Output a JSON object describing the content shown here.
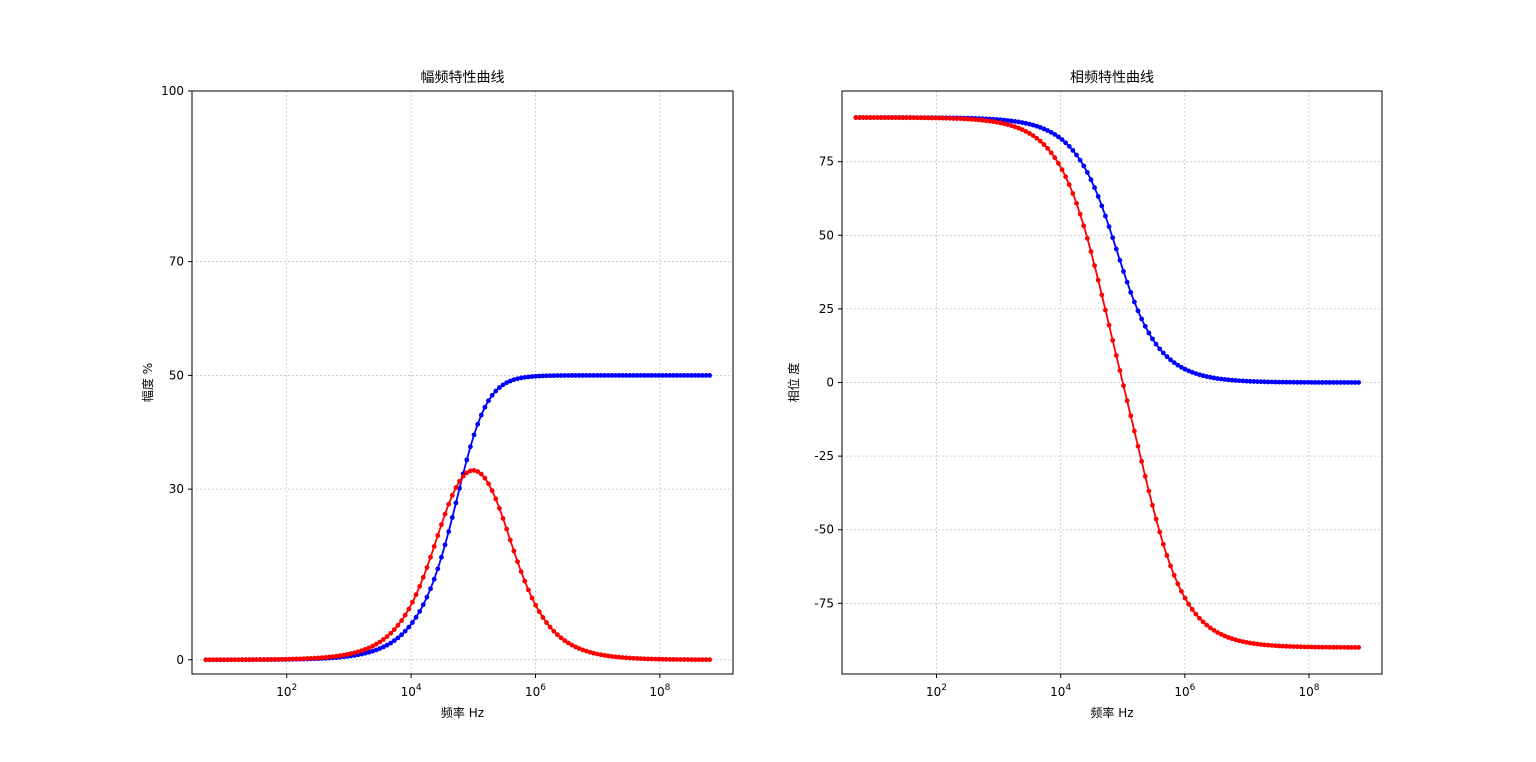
{
  "chart_data": [
    {
      "type": "line",
      "title": "幅频特性曲线",
      "xlabel": "频率 Hz",
      "ylabel": "幅度 %",
      "xscale": "log",
      "xlim": [
        3,
        1500000000
      ],
      "ylim": [
        -2.5,
        100
      ],
      "yticks": [
        0,
        30,
        50,
        70,
        100
      ],
      "xticks": [
        {
          "base": "10",
          "exp": "2",
          "value": 100
        },
        {
          "base": "10",
          "exp": "4",
          "value": 10000
        },
        {
          "base": "10",
          "exp": "6",
          "value": 1000000
        },
        {
          "base": "10",
          "exp": "8",
          "value": 100000000
        }
      ],
      "grid": true,
      "series": [
        {
          "color": "#0000ff",
          "kind": "highpass_mag",
          "peak": 50,
          "fc": 79577,
          "logmin": 0.7,
          "logmax": 8.8,
          "n": 140
        },
        {
          "color": "#ff0000",
          "kind": "bandpass_mag",
          "peak": 33.3,
          "fc": 100000,
          "logmin": 0.7,
          "logmax": 8.8,
          "n": 140
        }
      ]
    },
    {
      "type": "line",
      "title": "相频特性曲线",
      "xlabel": "频率 Hz",
      "ylabel": "相位 度",
      "xscale": "log",
      "xlim": [
        3,
        1500000000
      ],
      "ylim": [
        -99,
        99
      ],
      "yticks": [
        -75,
        -50,
        -25,
        0,
        25,
        50,
        75
      ],
      "xticks": [
        {
          "base": "10",
          "exp": "2",
          "value": 100
        },
        {
          "base": "10",
          "exp": "4",
          "value": 10000
        },
        {
          "base": "10",
          "exp": "6",
          "value": 1000000
        },
        {
          "base": "10",
          "exp": "8",
          "value": 100000000
        }
      ],
      "grid": true,
      "series": [
        {
          "color": "#0000ff",
          "kind": "highpass_phase",
          "fc": 79577,
          "logmin": 0.7,
          "logmax": 8.8,
          "n": 140
        },
        {
          "color": "#ff0000",
          "kind": "bandpass_phase",
          "fc": 100000,
          "q": 0.333,
          "logmin": 0.7,
          "logmax": 8.8,
          "n": 140
        }
      ]
    }
  ]
}
